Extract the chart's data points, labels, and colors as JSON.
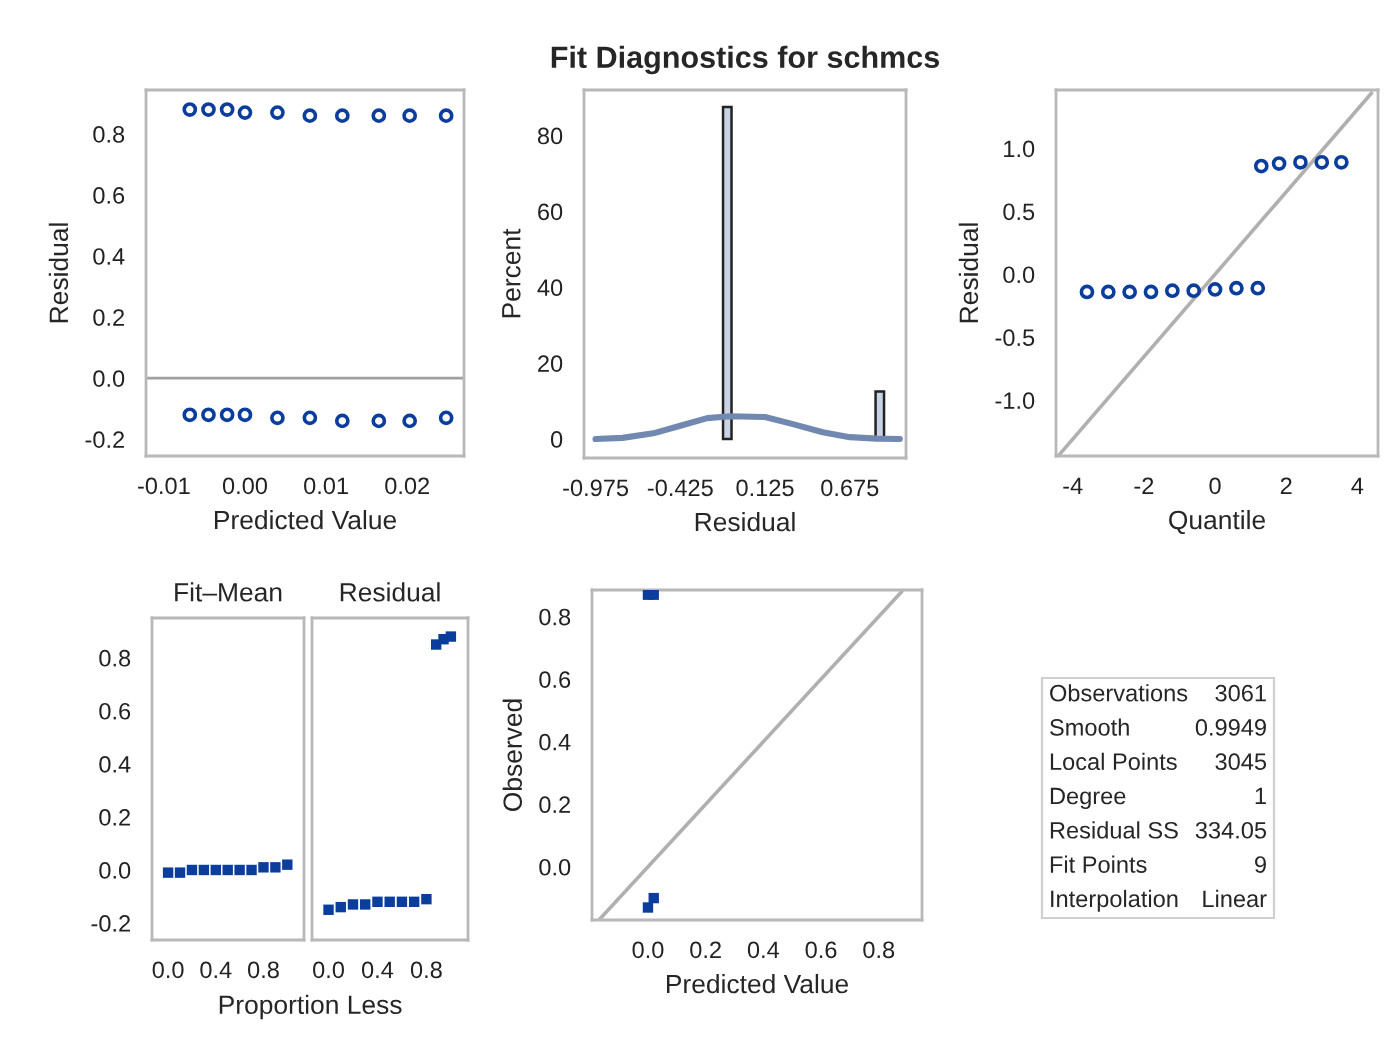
{
  "chart_data": [
    {
      "type": "scatter",
      "xlabel": "Predicted Value",
      "ylabel": "Residual",
      "xlim": [
        -0.0122,
        0.027
      ],
      "ylim": [
        -0.255,
        0.944
      ],
      "xticks": [
        {
          "value": -0.01,
          "label": "-0.01"
        },
        {
          "value": 0,
          "label": "0.00"
        },
        {
          "value": 0.01,
          "label": "0.01"
        },
        {
          "value": 0.02,
          "label": "0.02"
        }
      ],
      "yticks": [
        -0.2,
        {
          "value": 0,
          "label": "0.0"
        },
        0.2,
        0.4,
        0.6,
        0.8
      ],
      "marker": "circle",
      "ref_lines": [
        {
          "axis": "y",
          "value": 0,
          "color": "#a0a0a0"
        }
      ],
      "series": [
        {
          "color": "#0b3d9c",
          "x": [
            -0.0068,
            -0.0045,
            -0.0022,
            0.0,
            0.004,
            0.008,
            0.012,
            0.0165,
            0.0203,
            0.0248,
            -0.0068,
            -0.0045,
            -0.0022,
            0.0,
            0.004,
            0.008,
            0.012,
            0.0165,
            0.0203,
            0.0248
          ],
          "values": [
            0.88,
            0.88,
            0.88,
            0.87,
            0.87,
            0.86,
            0.86,
            0.86,
            0.86,
            0.86,
            -0.12,
            -0.12,
            -0.12,
            -0.12,
            -0.13,
            -0.13,
            -0.14,
            -0.14,
            -0.14,
            -0.13
          ]
        }
      ]
    },
    {
      "type": "histogram",
      "title": "Fit Diagnostics for schmcs",
      "xlabel": "Residual",
      "ylabel": "Percent",
      "color": "#c9d3e6",
      "bins": [
        -0.1475,
        -0.0925,
        -0.0375,
        0.0175,
        0.0725,
        0.1275,
        0.1825,
        0.2375,
        0.2925,
        0.3475,
        0.4025,
        0.4575,
        0.5125,
        0.5675,
        0.6225,
        0.6775,
        0.7325,
        0.7875,
        0.8425,
        0.8975
      ],
      "values": [
        87.5,
        0,
        0,
        0,
        0,
        0,
        0,
        0,
        0,
        0,
        0,
        0,
        0,
        0,
        0,
        0,
        0,
        0,
        12.5
      ],
      "xlim": [
        -1.05,
        1.04
      ],
      "ylim": [
        -5,
        92
      ],
      "xticks": [
        -0.975,
        -0.425,
        0.125,
        0.675
      ],
      "yticks": [
        0,
        20,
        40,
        60,
        80
      ],
      "series": [
        {
          "type": "line",
          "color": "#7189b0",
          "x": [
            -0.975,
            -0.8,
            -0.6,
            -0.425,
            -0.25,
            -0.1,
            0.125,
            0.3,
            0.5,
            0.675,
            0.85,
            1.0
          ],
          "values": [
            0,
            0.3,
            1.5,
            3.5,
            5.5,
            6,
            5.8,
            4,
            1.8,
            0.5,
            0.1,
            0
          ]
        }
      ]
    },
    {
      "type": "scatter",
      "xlabel": "Quantile",
      "ylabel": "Residual",
      "xlim": [
        -4.47,
        4.58
      ],
      "ylim": [
        -1.443,
        1.464
      ],
      "xticks": [
        -4,
        -2,
        0,
        2,
        4
      ],
      "yticks": [
        {
          "value": -1,
          "label": "-1.0"
        },
        -0.5,
        {
          "value": 0,
          "label": "0.0"
        },
        0.5,
        {
          "value": 1,
          "label": "1.0"
        }
      ],
      "series": [
        {
          "type": "line",
          "color": "#b0b0b0",
          "x": [
            -4.4,
            4.4
          ],
          "values": [
            -1.44,
            1.44
          ]
        },
        {
          "color": "#0b3d9c",
          "marker": "circle",
          "x": [
            -3.6,
            -3.0,
            -2.4,
            -1.8,
            -1.2,
            -0.6,
            0.0,
            0.6,
            1.2,
            1.3,
            1.8,
            2.4,
            3.0,
            3.55
          ],
          "values": [
            -0.14,
            -0.14,
            -0.14,
            -0.14,
            -0.13,
            -0.13,
            -0.12,
            -0.11,
            -0.11,
            0.86,
            0.88,
            0.89,
            0.89,
            0.89
          ]
        }
      ]
    },
    {
      "type": "scatter",
      "title": "Fit–Mean",
      "xlabel": "Proportion Less",
      "xlim": [
        -0.135,
        1.14
      ],
      "ylim": [
        -0.264,
        0.95
      ],
      "xticks": [
        {
          "value": 0,
          "label": "0.0"
        },
        0.4,
        0.8
      ],
      "yticks": [
        -0.2,
        {
          "value": 0,
          "label": "0.0"
        },
        0.2,
        0.4,
        0.6,
        0.8
      ],
      "marker": "square",
      "series": [
        {
          "color": "#0b3d9c",
          "x": [
            0.0,
            0.1,
            0.2,
            0.3,
            0.4,
            0.5,
            0.6,
            0.7,
            0.8,
            0.9,
            1.0
          ],
          "values": [
            -0.01,
            -0.01,
            0.0,
            0.0,
            0.0,
            0.0,
            0.0,
            0.0,
            0.01,
            0.01,
            0.02
          ]
        }
      ]
    },
    {
      "type": "scatter",
      "title": "Residual",
      "tick_labels": "x",
      "xlim": [
        -0.135,
        1.14
      ],
      "ylim": [
        -0.264,
        0.95
      ],
      "xticks": [
        {
          "value": 0,
          "label": "0.0"
        },
        0.4,
        0.8
      ],
      "marker": "square",
      "series": [
        {
          "color": "#0b3d9c",
          "x": [
            0.0,
            0.1,
            0.2,
            0.3,
            0.4,
            0.5,
            0.6,
            0.7,
            0.8,
            0.88,
            0.94,
            1.0
          ],
          "values": [
            -0.15,
            -0.14,
            -0.13,
            -0.13,
            -0.12,
            -0.12,
            -0.12,
            -0.12,
            -0.11,
            0.85,
            0.87,
            0.88
          ]
        }
      ]
    },
    {
      "type": "scatter",
      "xlabel": "Predicted Value",
      "ylabel": "Observed",
      "xlim": [
        -0.194,
        0.95
      ],
      "ylim": [
        -0.17,
        0.885
      ],
      "xticks": [
        {
          "value": 0,
          "label": "0.0"
        },
        0.2,
        0.4,
        0.6,
        0.8
      ],
      "yticks": [
        {
          "value": 0,
          "label": "0.0"
        },
        0.2,
        0.4,
        0.6,
        0.8
      ],
      "series": [
        {
          "type": "line",
          "color": "#b0b0b0",
          "x": [
            -0.17,
            0.88
          ],
          "values": [
            -0.17,
            0.88
          ]
        },
        {
          "color": "#0b3d9c",
          "marker": "square",
          "x": [
            0.0,
            0.02,
            0.0,
            0.02
          ],
          "values": [
            0.87,
            0.87,
            -0.13,
            -0.1
          ]
        }
      ]
    },
    {
      "type": "other",
      "annotations": [
        "Observations",
        "3061",
        "Smooth",
        "0.9949",
        "Local Points",
        "3045",
        "Degree",
        "1",
        "Residual SS",
        "334.05",
        "Fit Points",
        "9",
        "Interpolation",
        "Linear"
      ]
    }
  ]
}
